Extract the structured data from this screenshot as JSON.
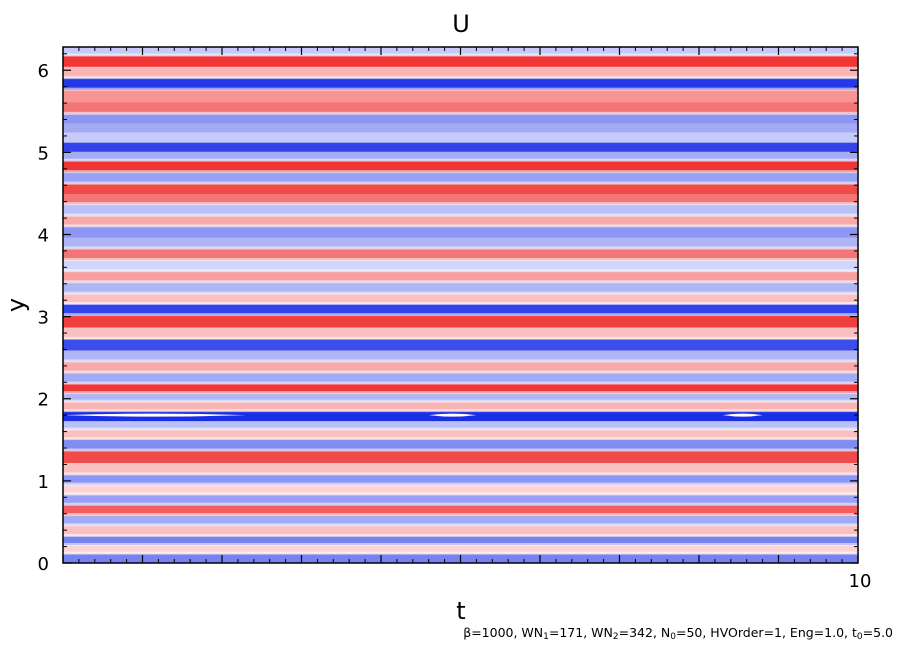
{
  "chart_data": {
    "type": "heatmap",
    "title": "U",
    "xlabel": "t",
    "ylabel": "y",
    "xlim": [
      0,
      10
    ],
    "ylim": [
      0,
      6.283
    ],
    "x_tick_labels": [
      "10"
    ],
    "y_ticks": [
      0,
      1,
      2,
      3,
      4,
      5,
      6
    ],
    "colormap": "blue-white-red (negative to positive)",
    "colors": {
      "negative": "#1a2ee6",
      "zero": "#ffffff",
      "positive": "#ee2a2a"
    },
    "stripes": [
      {
        "y": 0.06,
        "value": -0.6
      },
      {
        "y": 0.18,
        "value": 0.2
      },
      {
        "y": 0.27,
        "value": -0.6
      },
      {
        "y": 0.4,
        "value": 0.3
      },
      {
        "y": 0.53,
        "value": -0.4
      },
      {
        "y": 0.65,
        "value": 0.75
      },
      {
        "y": 0.78,
        "value": -0.45
      },
      {
        "y": 0.9,
        "value": 0.2
      },
      {
        "y": 1.02,
        "value": -0.5
      },
      {
        "y": 1.15,
        "value": 0.3
      },
      {
        "y": 1.3,
        "value": 0.85
      },
      {
        "y": 1.45,
        "value": -0.55
      },
      {
        "y": 1.58,
        "value": 0.3
      },
      {
        "y": 1.68,
        "value": -0.3
      },
      {
        "y": 1.79,
        "value": -1.0
      },
      {
        "y": 1.92,
        "value": 0.35
      },
      {
        "y": 2.02,
        "value": -0.35
      },
      {
        "y": 2.13,
        "value": 0.95
      },
      {
        "y": 2.25,
        "value": -0.4
      },
      {
        "y": 2.4,
        "value": 0.4
      },
      {
        "y": 2.52,
        "value": -0.35
      },
      {
        "y": 2.67,
        "value": -0.85
      },
      {
        "y": 2.8,
        "value": 0.3
      },
      {
        "y": 2.95,
        "value": 0.9
      },
      {
        "y": 3.1,
        "value": -0.9
      },
      {
        "y": 3.22,
        "value": 0.3
      },
      {
        "y": 3.35,
        "value": -0.35
      },
      {
        "y": 3.5,
        "value": 0.45
      },
      {
        "y": 3.62,
        "value": -0.2
      },
      {
        "y": 3.77,
        "value": 0.65
      },
      {
        "y": 3.9,
        "value": -0.35
      },
      {
        "y": 4.04,
        "value": -0.5
      },
      {
        "y": 4.17,
        "value": 0.4
      },
      {
        "y": 4.3,
        "value": -0.3
      },
      {
        "y": 4.45,
        "value": 0.65
      },
      {
        "y": 4.55,
        "value": 0.85
      },
      {
        "y": 4.7,
        "value": -0.45
      },
      {
        "y": 4.83,
        "value": 0.95
      },
      {
        "y": 4.98,
        "value": -0.4
      },
      {
        "y": 5.05,
        "value": -0.9
      },
      {
        "y": 5.2,
        "value": -0.25
      },
      {
        "y": 5.3,
        "value": -0.4
      },
      {
        "y": 5.42,
        "value": -0.5
      },
      {
        "y": 5.53,
        "value": 0.65
      },
      {
        "y": 5.7,
        "value": 0.5
      },
      {
        "y": 5.84,
        "value": -0.95
      },
      {
        "y": 5.98,
        "value": 0.35
      },
      {
        "y": 6.12,
        "value": 0.95
      },
      {
        "y": 6.25,
        "value": -0.25
      }
    ],
    "saturated_regions": [
      {
        "y": 1.8,
        "t_start": 0.0,
        "t_end": 2.3
      },
      {
        "y": 1.8,
        "t_start": 4.6,
        "t_end": 5.2
      },
      {
        "y": 1.8,
        "t_start": 8.3,
        "t_end": 8.8
      }
    ]
  },
  "footnote": {
    "beta": "β",
    "beta_value": "=1000, WN",
    "wn1_sub": "1",
    "wn1_value": "=171, WN",
    "wn2_sub": "2",
    "wn2_value": "=342, N",
    "n0_sub": "0",
    "n0_value": "=50, HVOrder=1, Eng=1.0, t",
    "t0_sub": "0",
    "t0_value": "=5.0"
  }
}
